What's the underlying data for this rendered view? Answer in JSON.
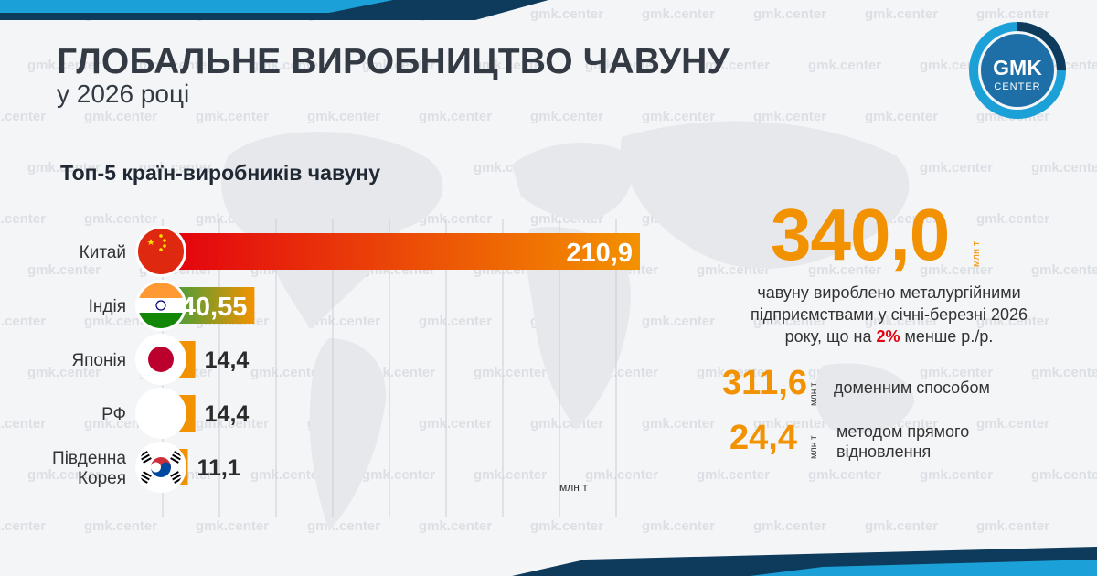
{
  "header": {
    "title": "ГЛОБАЛЬНЕ ВИРОБНИЦТВО ЧАВУНУ",
    "subtitle": "у 2026 році"
  },
  "logo": {
    "top": "GMK",
    "bottom": "CENTER",
    "ring_color": "#1ba1d8"
  },
  "watermark": "gmk.center",
  "chart_data": {
    "type": "bar",
    "orientation": "horizontal",
    "title": "Топ-5 країн-виробників чавуну",
    "unit_label": "млн т",
    "categories": [
      "Китай",
      "Індія",
      "Японія",
      "РФ",
      "Південна Корея"
    ],
    "category_lines": [
      [
        "Китай"
      ],
      [
        "Індія"
      ],
      [
        "Японія"
      ],
      [
        "РФ"
      ],
      [
        "Південна",
        "Корея"
      ]
    ],
    "values": [
      210.9,
      40.55,
      14.4,
      14.4,
      11.1
    ],
    "value_labels": [
      "210,9",
      "40,55",
      "14,4",
      "14,4",
      "11,1"
    ],
    "flags": [
      "china-flag-icon",
      "india-flag-icon",
      "japan-flag-icon",
      "russia-flag-icon",
      "south-korea-flag-icon"
    ],
    "bar_colors": {
      "start": "#e3000f",
      "end": "#f39200",
      "india_start": "#2ea043"
    },
    "grid": true
  },
  "summary": {
    "total_value": "340,0",
    "total_unit": "млн т",
    "description_pre": "чавуну вироблено металургійними підприємствами у січні-березні 2026 року, що на ",
    "description_pct": "2%",
    "description_post": " менше р./р.",
    "accent_color": "#f39200",
    "stats": [
      {
        "value": "311,6",
        "unit": "млн т",
        "label": "доменним способом"
      },
      {
        "value": "24,4",
        "unit": "млн т",
        "label": "методом прямого відновлення"
      }
    ]
  }
}
